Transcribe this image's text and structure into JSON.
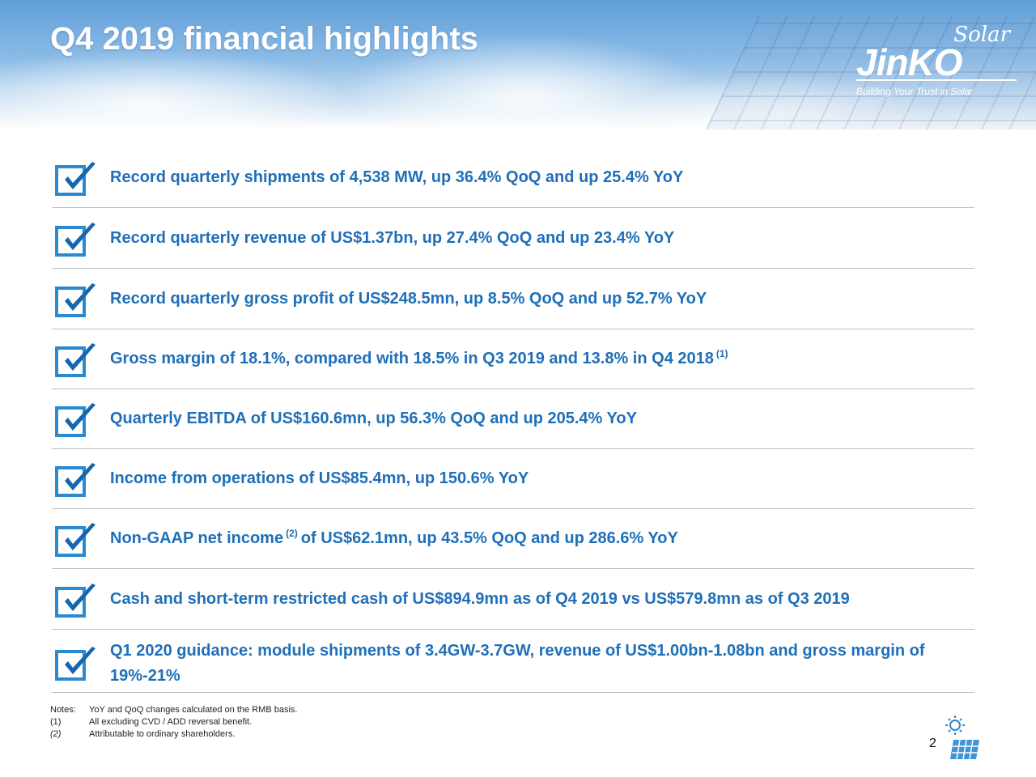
{
  "header": {
    "title": "Q4 2019 financial highlights",
    "logo": {
      "solar": "Solar",
      "brand": "JinKO",
      "tagline": "Building Your Trust in Solar"
    }
  },
  "highlights": [
    {
      "text": "Record quarterly shipments of 4,538 MW, up 36.4% QoQ and up 25.4% YoY"
    },
    {
      "text": "Record quarterly revenue of US$1.37bn, up 27.4% QoQ and up 23.4% YoY"
    },
    {
      "text": "Record quarterly gross profit of US$248.5mn, up 8.5% QoQ and up 52.7% YoY"
    },
    {
      "text": "Gross margin of 18.1%, compared with 18.5% in Q3 2019 and 13.8% in Q4 2018",
      "sup": "(1)"
    },
    {
      "text": "Quarterly EBITDA of US$160.6mn, up 56.3% QoQ and up 205.4% YoY"
    },
    {
      "text": "Income from operations of US$85.4mn, up 150.6% YoY"
    },
    {
      "text_before": "Non-GAAP net income",
      "sup": "(2)",
      "text_after": "of US$62.1mn, up 43.5% QoQ and up 286.6% YoY"
    },
    {
      "text": "Cash and short-term restricted cash of US$894.9mn as of Q4 2019 vs US$579.8mn as of Q3 2019"
    },
    {
      "text": "Q1 2020 guidance: module shipments of 3.4GW-3.7GW, revenue of US$1.00bn-1.08bn and gross margin of 19%-21%"
    }
  ],
  "notes": {
    "label": "Notes:",
    "general": "YoY and QoQ changes calculated on the RMB basis.",
    "items": [
      {
        "key": "(1)",
        "text": "All excluding CVD / ADD reversal benefit."
      },
      {
        "key": "(2)",
        "text": "Attributable to ordinary shareholders."
      }
    ]
  },
  "page_number": "2",
  "colors": {
    "highlight_text": "#1f6fb8",
    "check_box": "#2a8ad1",
    "check_mark": "#1565b0",
    "divider": "#bdbdbd",
    "title": "#ffffff"
  }
}
